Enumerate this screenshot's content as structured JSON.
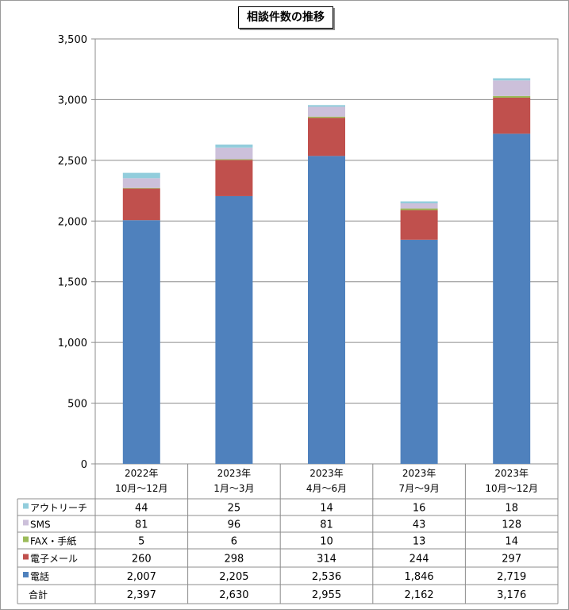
{
  "chart_data": {
    "type": "bar",
    "stacked": true,
    "title": "相談件数の推移",
    "categories": [
      [
        "2022年",
        "10月～12月"
      ],
      [
        "2023年",
        "1月～3月"
      ],
      [
        "2023年",
        "4月～6月"
      ],
      [
        "2023年",
        "7月～9月"
      ],
      [
        "2023年",
        "10月～12月"
      ]
    ],
    "ylim": [
      0,
      3500
    ],
    "yticks": [
      0,
      500,
      1000,
      1500,
      2000,
      2500,
      3000,
      3500
    ],
    "ytick_labels": [
      "0",
      "500",
      "1,000",
      "1,500",
      "2,000",
      "2,500",
      "3,000",
      "3,500"
    ],
    "grid": true,
    "legend": "data-table-left",
    "series": [
      {
        "name": "電話",
        "color": "#4f81bd",
        "values": [
          2007,
          2205,
          2536,
          1846,
          2719
        ],
        "labels": [
          "2,007",
          "2,205",
          "2,536",
          "1,846",
          "2,719"
        ]
      },
      {
        "name": "電子メール",
        "color": "#c0504d",
        "values": [
          260,
          298,
          314,
          244,
          297
        ],
        "labels": [
          "260",
          "298",
          "314",
          "244",
          "297"
        ]
      },
      {
        "name": "FAX・手紙",
        "color": "#9bbb59",
        "values": [
          5,
          6,
          10,
          13,
          14
        ],
        "labels": [
          "5",
          "6",
          "10",
          "13",
          "14"
        ]
      },
      {
        "name": "SMS",
        "color": "#ccc0da",
        "values": [
          81,
          96,
          81,
          43,
          128
        ],
        "labels": [
          "81",
          "96",
          "81",
          "43",
          "128"
        ]
      },
      {
        "name": "アウトリーチ",
        "color": "#92cddc",
        "values": [
          44,
          25,
          14,
          16,
          18
        ],
        "labels": [
          "44",
          "25",
          "14",
          "16",
          "18"
        ]
      }
    ],
    "table_row_order": [
      "アウトリーチ",
      "SMS",
      "FAX・手紙",
      "電子メール",
      "電話"
    ],
    "total": {
      "name": "合計",
      "values": [
        2397,
        2630,
        2955,
        2162,
        3176
      ],
      "labels": [
        "2,397",
        "2,630",
        "2,955",
        "2,162",
        "3,176"
      ]
    }
  }
}
